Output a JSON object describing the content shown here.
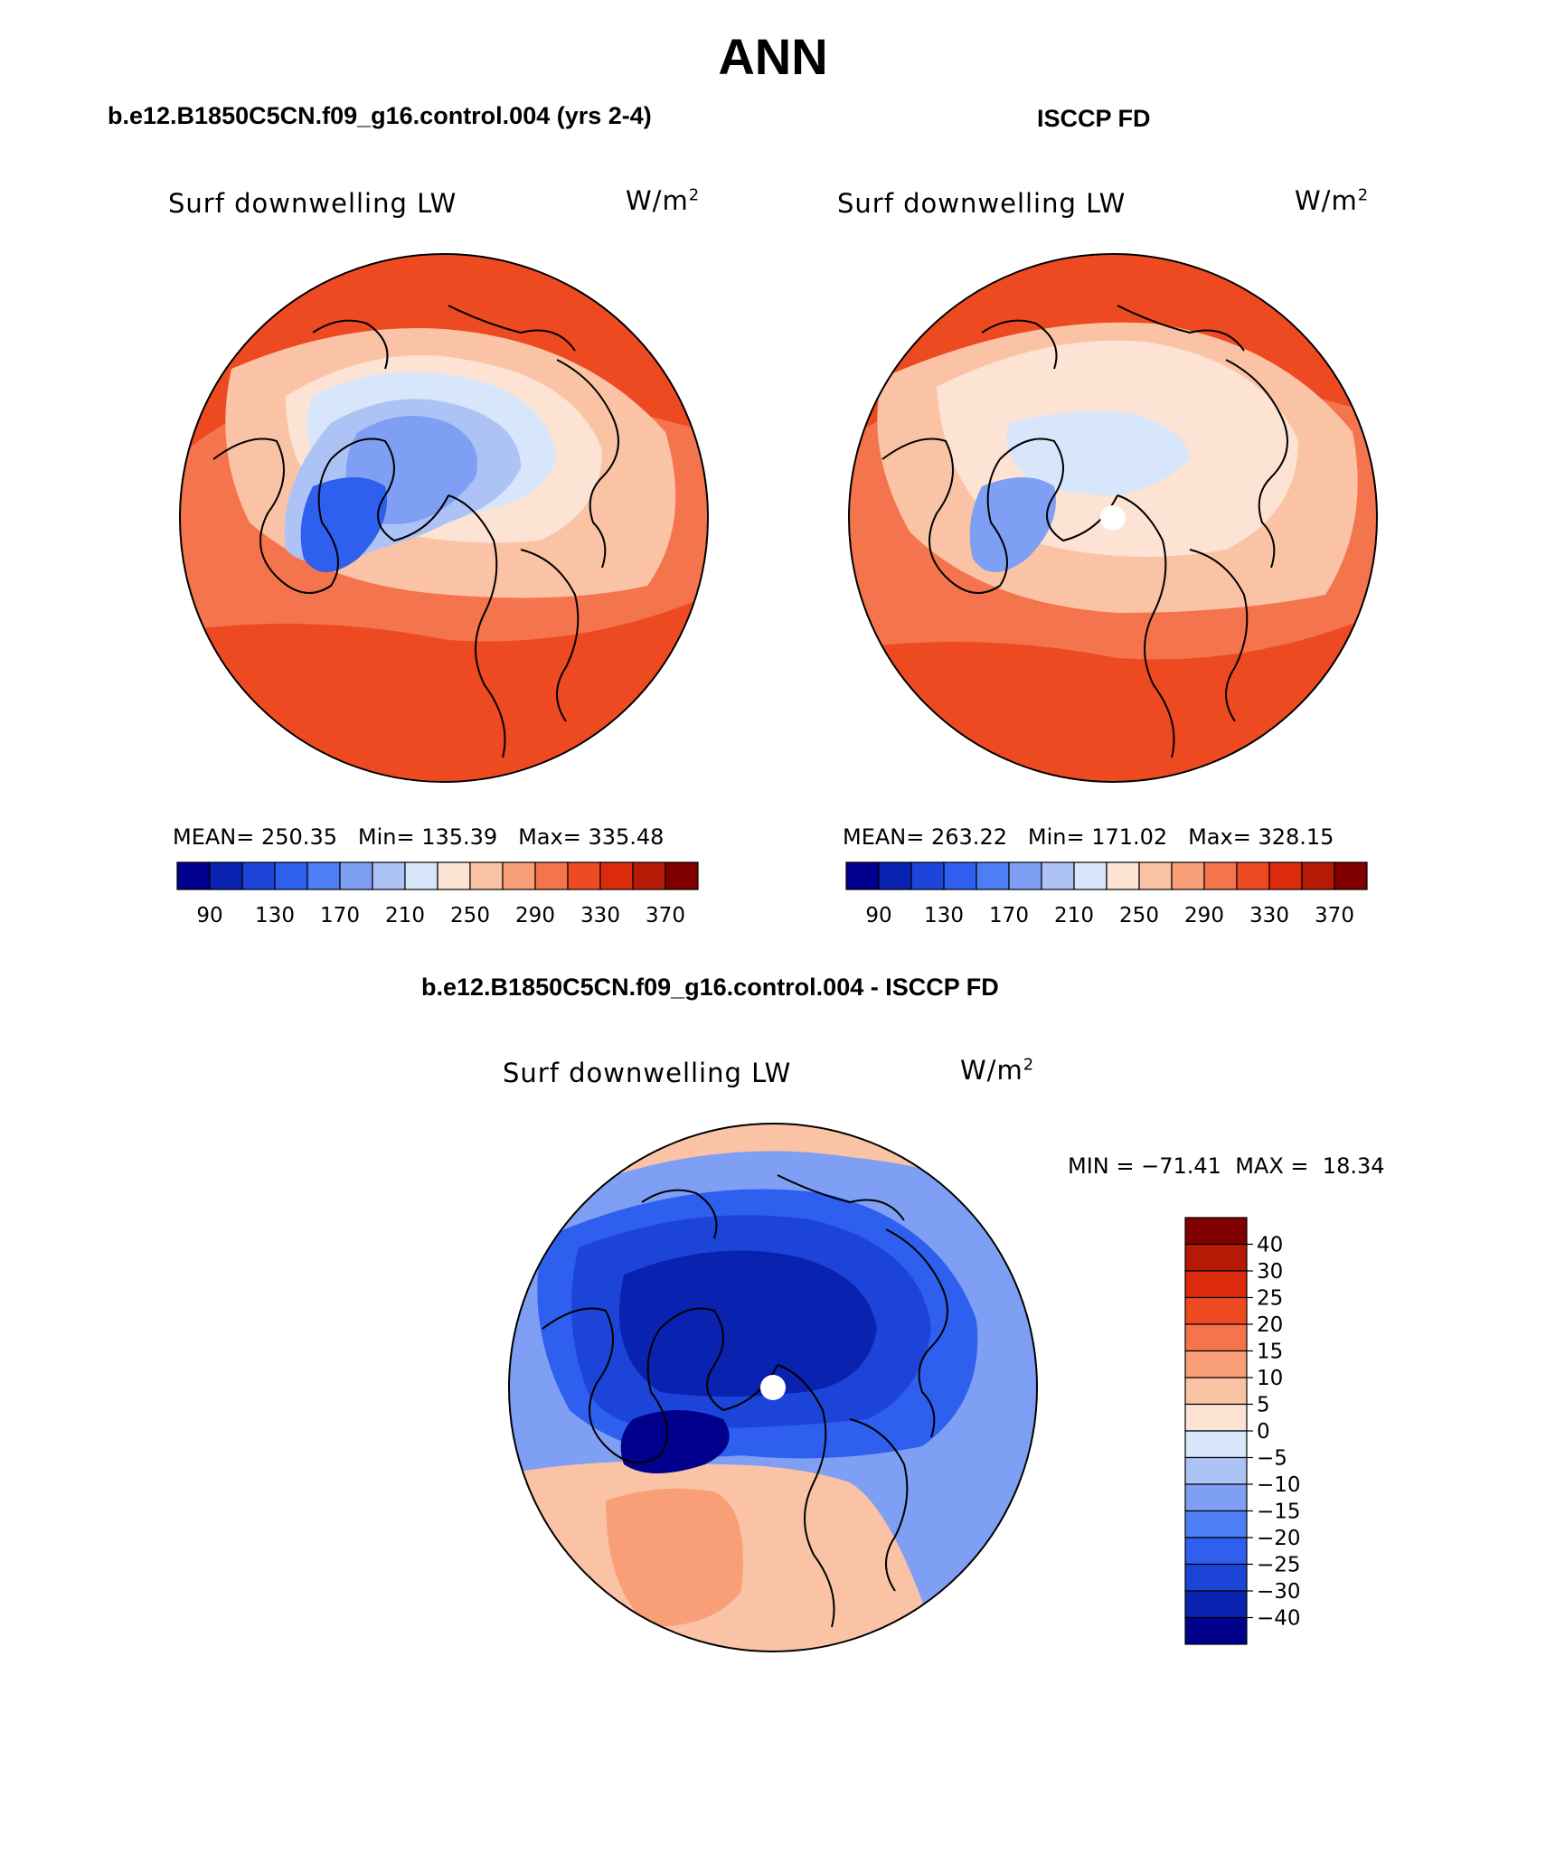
{
  "page": {
    "title": "ANN"
  },
  "panel_titles": {
    "model": "b.e12.B1850C5CN.f09_g16.control.004 (yrs 2-4)",
    "obs": "ISCCP FD",
    "diff": "b.e12.B1850C5CN.f09_g16.control.004 - ISCCP FD"
  },
  "colors": {
    "abs_scale": [
      "#00008c",
      "#0a22b0",
      "#1d44d8",
      "#2e5fee",
      "#4d7ef3",
      "#7e9ff3",
      "#adc3f5",
      "#d7e6fb",
      "#fde3d4",
      "#fbc3a6",
      "#f89f78",
      "#f4754d",
      "#ee4a22",
      "#db2a0c",
      "#b41a05",
      "#800000"
    ],
    "diff_scale": [
      "#00008c",
      "#0a22b0",
      "#1d44d8",
      "#2e5fee",
      "#4d7ef3",
      "#7e9ff3",
      "#adc3f5",
      "#d7e6fb",
      "#fde3d4",
      "#fbc3a6",
      "#f89f78",
      "#f4754d",
      "#ee4a22",
      "#db2a0c",
      "#b41a05",
      "#800000"
    ],
    "land_outline": "#000000"
  },
  "chart_data": [
    {
      "type": "heatmap",
      "projection": "north polar stereographic",
      "title": "b.e12.B1850C5CN.f09_g16.control.004 (yrs 2-4)",
      "field": "Surf downwelling LW",
      "units_base": "W/m",
      "units_exp": "2",
      "stats": {
        "mean_label": "MEAN=",
        "mean": "250.35",
        "min_label": "Min=",
        "min": "135.39",
        "max_label": "Max=",
        "max": "335.48"
      },
      "colorbar_levels": [
        90,
        130,
        170,
        210,
        250,
        290,
        330,
        370
      ],
      "colorbar_tick_labels": [
        "90",
        "130",
        "170",
        "210",
        "250",
        "290",
        "330",
        "370"
      ],
      "arctic_value_class": 2,
      "pole_missing": false
    },
    {
      "type": "heatmap",
      "projection": "north polar stereographic",
      "title": "ISCCP FD",
      "field": "Surf downwelling LW",
      "units_base": "W/m",
      "units_exp": "2",
      "stats": {
        "mean_label": "MEAN=",
        "mean": "263.22",
        "min_label": "Min=",
        "min": "171.02",
        "max_label": "Max=",
        "max": "328.15"
      },
      "colorbar_levels": [
        90,
        130,
        170,
        210,
        250,
        290,
        330,
        370
      ],
      "colorbar_tick_labels": [
        "90",
        "130",
        "170",
        "210",
        "250",
        "290",
        "330",
        "370"
      ],
      "arctic_value_class": 0,
      "pole_missing": true
    },
    {
      "type": "heatmap",
      "projection": "north polar stereographic",
      "title": "b.e12.B1850C5CN.f09_g16.control.004 - ISCCP FD",
      "field": "Surf downwelling LW",
      "units_base": "W/m",
      "units_exp": "2",
      "stats": {
        "min_label": "MIN =",
        "min": "−71.41",
        "max_label": "MAX =",
        "max": "18.34"
      },
      "colorbar_levels": [
        -40,
        -30,
        -25,
        -20,
        -15,
        -10,
        -5,
        0,
        5,
        10,
        15,
        20,
        25,
        30,
        40
      ],
      "colorbar_tick_labels": [
        "40",
        "30",
        "25",
        "20",
        "15",
        "10",
        "5",
        "0",
        "−5",
        "−10",
        "−15",
        "−20",
        "−25",
        "−30",
        "−40"
      ],
      "pole_missing": true
    }
  ]
}
